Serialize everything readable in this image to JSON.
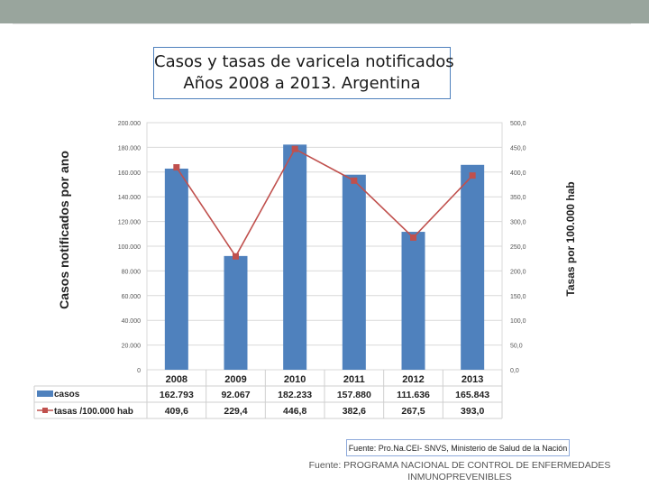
{
  "slide": {
    "title_line1": "Casos y tasas de varicela notificados",
    "title_line2": "Años 2008 a 2013. Argentina",
    "source_box": "Fuente: Pro.Na.CEI- SNVS, Ministerio de Salud de la Nación",
    "footer_line1": "Fuente: PROGRAMA NACIONAL DE CONTROL DE ENFERMEDADES",
    "footer_line2": "INMUNOPREVENIBLES"
  },
  "chart_data": {
    "type": "bar",
    "categories": [
      "2008",
      "2009",
      "2010",
      "2011",
      "2012",
      "2013"
    ],
    "ylabel": "Casos notificados por ano",
    "y2label": "Tasas  por 100.000 hab",
    "ylim": [
      0,
      200000
    ],
    "y2lim": [
      0,
      500
    ],
    "yticks": [
      "0",
      "20.000",
      "40.000",
      "60.000",
      "80.000",
      "100.000",
      "120.000",
      "140.000",
      "160.000",
      "180.000",
      "200.000"
    ],
    "y2ticks": [
      "0,0",
      "50,0",
      "100,0",
      "150,0",
      "200,0",
      "250,0",
      "300,0",
      "350,0",
      "400,0",
      "450,0",
      "500,0"
    ],
    "grid": true,
    "series": [
      {
        "name": "casos",
        "type": "bar",
        "color": "#4f81bd",
        "axis": "left",
        "values": [
          162793,
          92067,
          182233,
          157880,
          111636,
          165843
        ],
        "labels": [
          "162.793",
          "92.067",
          "182.233",
          "157.880",
          "111.636",
          "165.843"
        ]
      },
      {
        "name": "tasas /100.000 hab",
        "type": "line",
        "color": "#c0504d",
        "axis": "right",
        "values": [
          409.6,
          229.4,
          446.8,
          382.6,
          267.5,
          393.0
        ],
        "labels": [
          "409,6",
          "229,4",
          "446,8",
          "382,6",
          "267,5",
          "393,0"
        ]
      }
    ]
  }
}
